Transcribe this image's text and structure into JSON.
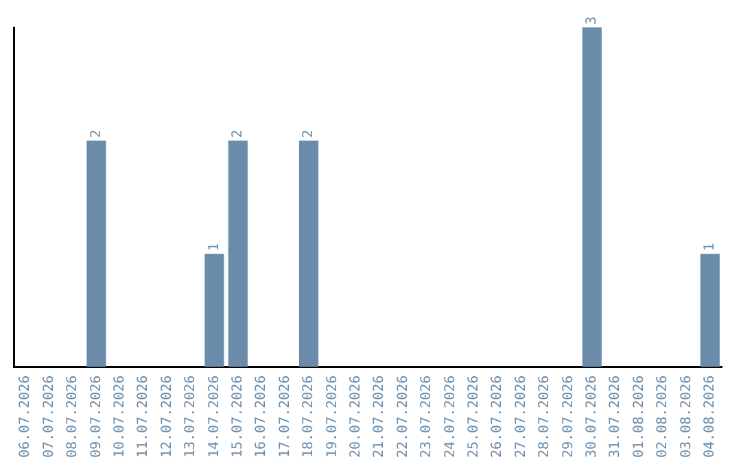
{
  "chart_data": {
    "type": "bar",
    "categories": [
      "06.07.2026",
      "07.07.2026",
      "08.07.2026",
      "09.07.2026",
      "10.07.2026",
      "11.07.2026",
      "12.07.2026",
      "13.07.2026",
      "14.07.2026",
      "15.07.2026",
      "16.07.2026",
      "17.07.2026",
      "18.07.2026",
      "19.07.2026",
      "20.07.2026",
      "21.07.2026",
      "22.07.2026",
      "23.07.2026",
      "24.07.2026",
      "25.07.2026",
      "26.07.2026",
      "27.07.2026",
      "28.07.2026",
      "29.07.2026",
      "30.07.2026",
      "31.07.2026",
      "01.08.2026",
      "02.08.2026",
      "03.08.2026",
      "04.08.2026"
    ],
    "values": [
      0,
      0,
      0,
      2,
      0,
      0,
      0,
      0,
      1,
      2,
      0,
      0,
      2,
      0,
      0,
      0,
      0,
      0,
      0,
      0,
      0,
      0,
      0,
      0,
      3,
      0,
      0,
      0,
      0,
      1
    ],
    "value_labels": [
      null,
      null,
      null,
      "2",
      null,
      null,
      null,
      null,
      "1",
      "2",
      null,
      null,
      "2",
      null,
      null,
      null,
      null,
      null,
      null,
      null,
      null,
      null,
      null,
      null,
      "3",
      null,
      null,
      null,
      null,
      "1"
    ],
    "color": "#6a8caa",
    "grid": false,
    "legend": false
  }
}
